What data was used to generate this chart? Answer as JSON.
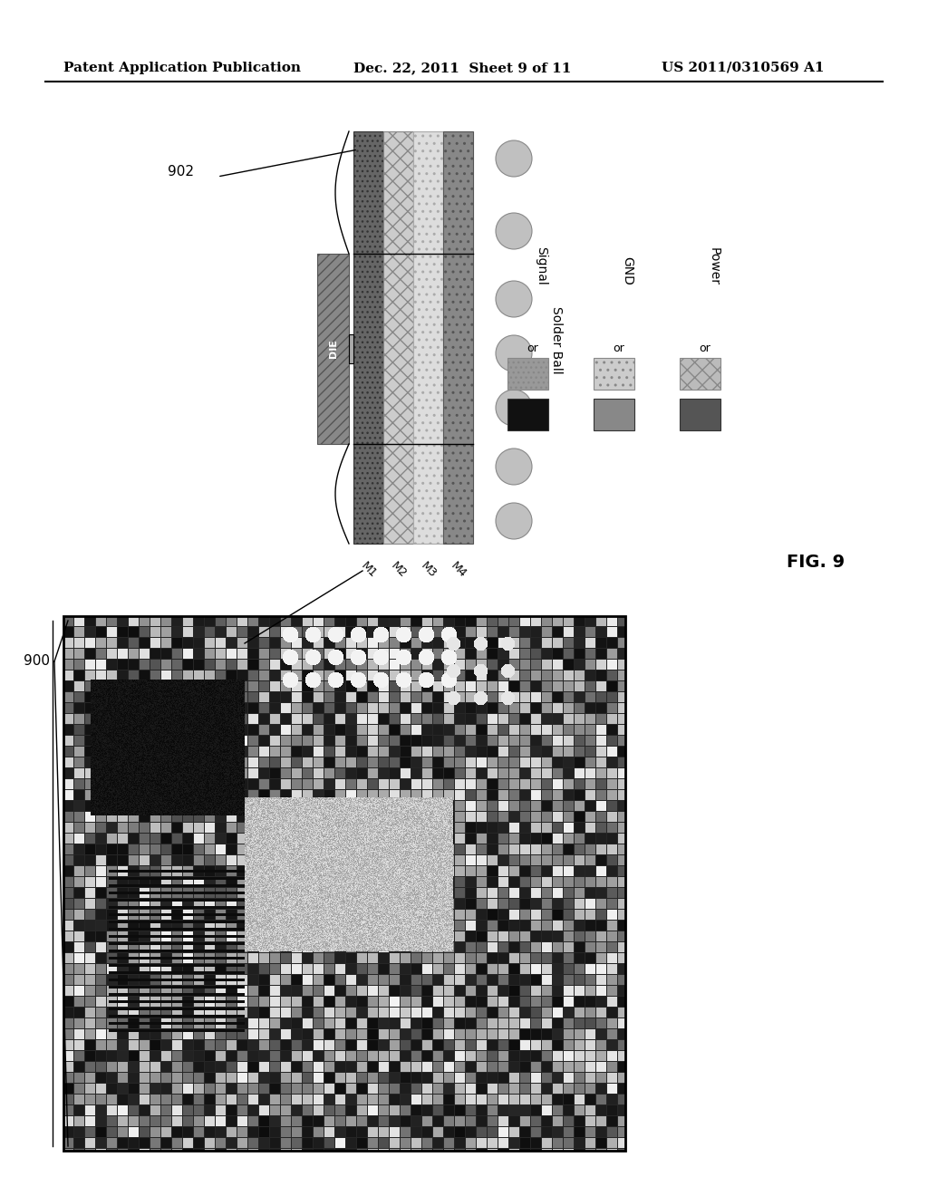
{
  "header_left": "Patent Application Publication",
  "header_mid": "Dec. 22, 2011  Sheet 9 of 11",
  "header_right": "US 2011/0310569 A1",
  "fig_label": "FIG. 9",
  "label_902": "902",
  "label_900": "900",
  "die_label": "DIE",
  "m_labels": [
    "M1",
    "M2",
    "M3",
    "M4"
  ],
  "solder_ball_label": "Solder Ball",
  "legend_labels": [
    "Signal",
    "GND",
    "Power"
  ],
  "legend_or": "or",
  "bg_color": "#ffffff",
  "text_color": "#000000",
  "layer_colors": {
    "M1_dark": "#555555",
    "M2_light": "#cccccc",
    "M3_cross": "#aaaaaa",
    "M4_dark": "#777777"
  },
  "die_color": "#666666",
  "solder_ball_color": "#b0b0b0",
  "signal_light": "#888888",
  "signal_dark": "#111111",
  "gnd_light": "#bbbbbb",
  "gnd_dark": "#888888",
  "power_light": "#aaaaaa",
  "power_dark": "#555555"
}
